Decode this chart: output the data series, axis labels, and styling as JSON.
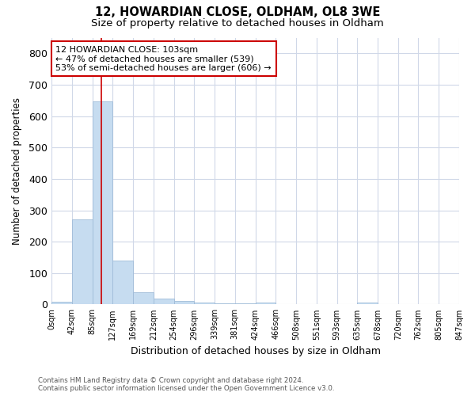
{
  "title_line1": "12, HOWARDIAN CLOSE, OLDHAM, OL8 3WE",
  "title_line2": "Size of property relative to detached houses in Oldham",
  "xlabel": "Distribution of detached houses by size in Oldham",
  "ylabel": "Number of detached properties",
  "footnote": "Contains HM Land Registry data © Crown copyright and database right 2024.\nContains public sector information licensed under the Open Government Licence v3.0.",
  "bar_edges": [
    0,
    42,
    85,
    127,
    169,
    212,
    254,
    296,
    339,
    381,
    424,
    466,
    508,
    551,
    593,
    635,
    678,
    720,
    762,
    805,
    847
  ],
  "bar_heights": [
    8,
    272,
    648,
    140,
    38,
    19,
    11,
    6,
    4,
    4,
    5,
    0,
    0,
    0,
    0,
    5,
    0,
    0,
    0,
    0
  ],
  "bar_color": "#c6dcf0",
  "bar_edgecolor": "#a0bcd8",
  "vline_x": 103,
  "vline_color": "#cc0000",
  "ylim": [
    0,
    850
  ],
  "yticks": [
    0,
    100,
    200,
    300,
    400,
    500,
    600,
    700,
    800
  ],
  "annotation_text": "12 HOWARDIAN CLOSE: 103sqm\n← 47% of detached houses are smaller (539)\n53% of semi-detached houses are larger (606) →",
  "annotation_box_edgecolor": "#cc0000",
  "bg_color": "#ffffff",
  "plot_bg_color": "#ffffff",
  "grid_color": "#d0d8e8",
  "tick_labels": [
    "0sqm",
    "42sqm",
    "85sqm",
    "127sqm",
    "169sqm",
    "212sqm",
    "254sqm",
    "296sqm",
    "339sqm",
    "381sqm",
    "424sqm",
    "466sqm",
    "508sqm",
    "551sqm",
    "593sqm",
    "635sqm",
    "678sqm",
    "720sqm",
    "762sqm",
    "805sqm",
    "847sqm"
  ]
}
